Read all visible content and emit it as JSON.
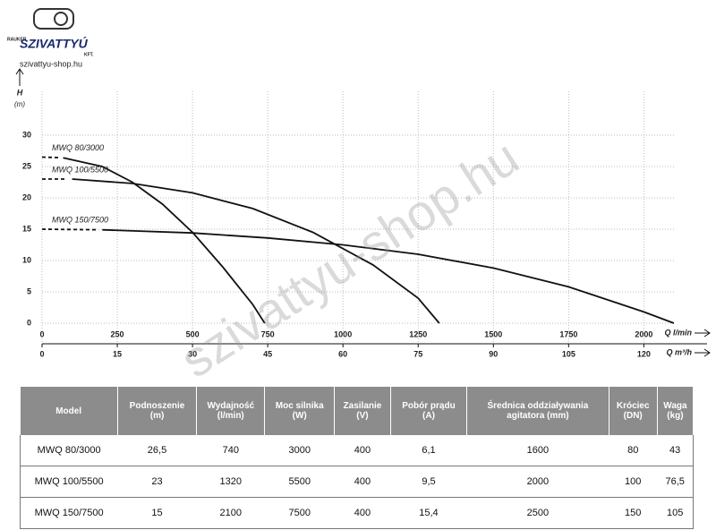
{
  "logo": {
    "brand_top": "RAUKER",
    "brand": "SZIVATTYÚ",
    "suffix": "KFT.",
    "url": "szivattyu-shop.hu"
  },
  "watermark": "szivattyu-shop.hu",
  "chart_data": {
    "type": "line",
    "y_label": "H",
    "y_unit": "(m)",
    "x_label": "Q l/min",
    "x2_label": "Q m³/h",
    "xlim": [
      0,
      2100
    ],
    "xticks": [
      0,
      250,
      500,
      750,
      1000,
      1250,
      1500,
      1750,
      2000
    ],
    "x2lim": [
      0,
      126
    ],
    "x2ticks": [
      0,
      15,
      30,
      45,
      60,
      75,
      90,
      105,
      120
    ],
    "ylim": [
      0,
      37
    ],
    "yticks": [
      0,
      5,
      10,
      15,
      20,
      25,
      30
    ],
    "grid": true,
    "series": [
      {
        "name": "MWQ 80/3000",
        "color": "#111111",
        "x": [
          0,
          70,
          200,
          300,
          400,
          500,
          600,
          700,
          740
        ],
        "values": [
          26.5,
          26.4,
          25,
          22.5,
          19,
          14.5,
          9,
          3,
          0
        ]
      },
      {
        "name": "MWQ 100/5500",
        "color": "#111111",
        "x": [
          0,
          100,
          300,
          500,
          700,
          900,
          1100,
          1250,
          1320
        ],
        "values": [
          23,
          23,
          22.3,
          20.8,
          18.3,
          14.5,
          9.3,
          4,
          0
        ]
      },
      {
        "name": "MWQ 150/7500",
        "color": "#111111",
        "x": [
          0,
          200,
          500,
          750,
          1000,
          1250,
          1500,
          1750,
          2000,
          2100
        ],
        "values": [
          15,
          14.9,
          14.4,
          13.6,
          12.5,
          11,
          8.8,
          5.8,
          1.8,
          0
        ]
      }
    ]
  },
  "table": {
    "header": [
      "Model",
      "Podnoszenie\n(m)",
      "Wydajność\n(l/min)",
      "Moc silnika\n(W)",
      "Zasilanie\n(V)",
      "Pobór prądu\n(A)",
      "Średnica oddziaływania\nagitatora (mm)",
      "Króciec\n(DN)",
      "Waga\n(kg)"
    ],
    "rows": [
      [
        "MWQ 80/3000",
        "26,5",
        "740",
        "3000",
        "400",
        "6,1",
        "1600",
        "80",
        "43"
      ],
      [
        "MWQ 100/5500",
        "23",
        "1320",
        "5500",
        "400",
        "9,5",
        "2000",
        "100",
        "76,5"
      ],
      [
        "MWQ 150/7500",
        "15",
        "2100",
        "7500",
        "400",
        "15,4",
        "2500",
        "150",
        "105"
      ]
    ]
  }
}
